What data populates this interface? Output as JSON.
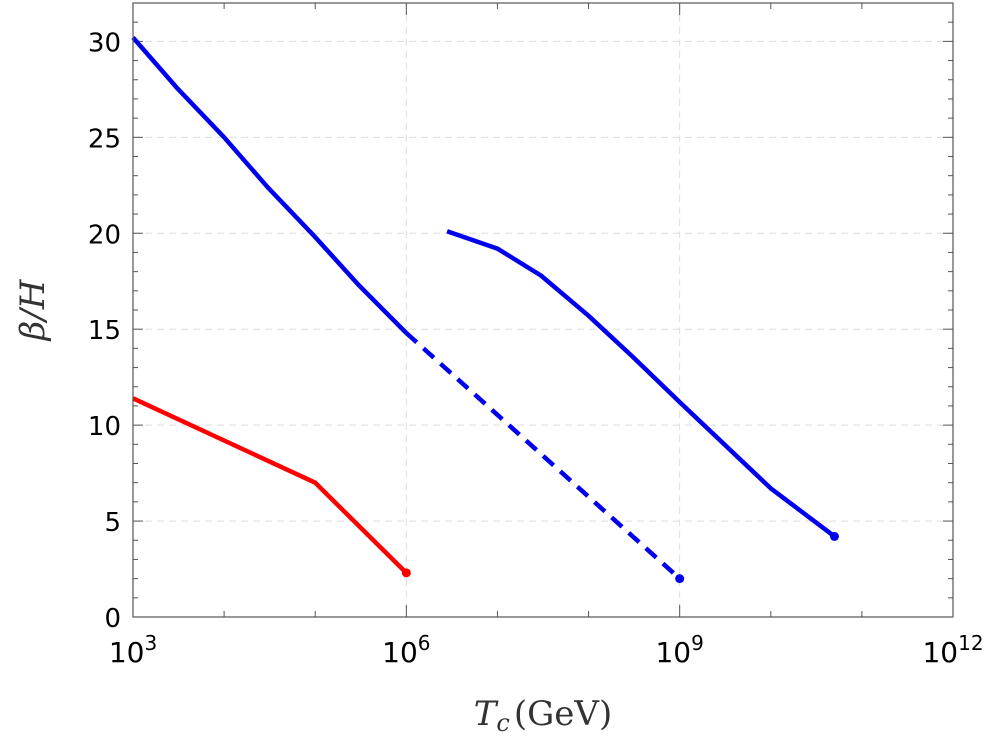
{
  "chart_data": {
    "type": "line",
    "xlabel_main": "T",
    "xlabel_sub": "c",
    "xlabel_unit": "(GeV)",
    "ylabel_main": "β",
    "ylabel_rest": "/H",
    "x_scale": "log",
    "xlim": [
      1000,
      1000000000000
    ],
    "ylim": [
      0,
      32
    ],
    "grid": true,
    "x_ticks": [
      {
        "base": "10",
        "exp": "3",
        "value": 1000
      },
      {
        "base": "10",
        "exp": "6",
        "value": 1000000
      },
      {
        "base": "10",
        "exp": "9",
        "value": 1000000000
      },
      {
        "base": "10",
        "exp": "12",
        "value": 1000000000000
      }
    ],
    "y_ticks": [
      "0",
      "5",
      "10",
      "15",
      "20",
      "25",
      "30"
    ],
    "series": [
      {
        "color": "#ff0000",
        "style": "solid",
        "endpoint_marker": true,
        "points": [
          [
            1000,
            11.4
          ],
          [
            10000,
            9.2
          ],
          [
            100000,
            7.0
          ],
          [
            1000000,
            2.3
          ]
        ]
      },
      {
        "color": "#0000ee",
        "style": "solid",
        "endpoint_marker": false,
        "points": [
          [
            1000,
            30.2
          ],
          [
            3000,
            27.6
          ],
          [
            10000,
            25.0
          ],
          [
            30000,
            22.4
          ],
          [
            100000,
            19.8
          ],
          [
            300000,
            17.3
          ],
          [
            1000000,
            14.8
          ]
        ]
      },
      {
        "color": "#0000ee",
        "style": "dashed",
        "endpoint_marker": true,
        "points": [
          [
            1000000,
            14.8
          ],
          [
            1000000000,
            2.0
          ]
        ]
      },
      {
        "color": "#0000ee",
        "style": "solid",
        "endpoint_marker": true,
        "points": [
          [
            2800000,
            20.1
          ],
          [
            10000000,
            19.2
          ],
          [
            30000000,
            17.8
          ],
          [
            100000000,
            15.7
          ],
          [
            300000000,
            13.6
          ],
          [
            1000000000,
            11.2
          ],
          [
            10000000000,
            6.7
          ],
          [
            50000000000,
            4.2
          ]
        ]
      }
    ]
  }
}
